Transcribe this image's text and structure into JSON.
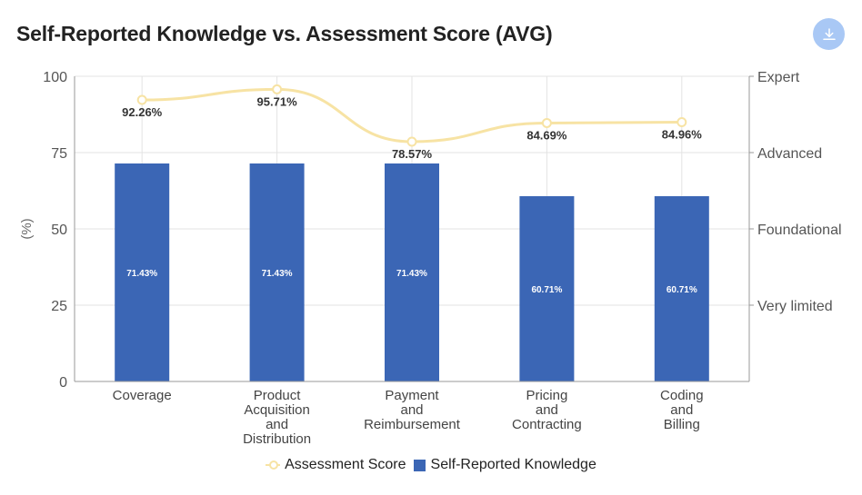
{
  "title": "Self-Reported Knowledge vs. Assessment Score (AVG)",
  "download_icon": "download-icon",
  "colors": {
    "bar": "#3b66b5",
    "line": "#f7e3a4",
    "grid": "#e3e3e3",
    "axis": "#999999"
  },
  "legend": {
    "line_label": "Assessment Score",
    "bar_label": "Self-Reported Knowledge"
  },
  "chart_data": {
    "type": "bar",
    "title": "Self-Reported Knowledge vs. Assessment Score (AVG)",
    "categories": [
      [
        "Coverage"
      ],
      [
        "Product",
        "Acquisition",
        "and",
        "Distribution"
      ],
      [
        "Payment",
        "and",
        "Reimbursement"
      ],
      [
        "Pricing",
        "and",
        "Contracting"
      ],
      [
        "Coding",
        "and",
        "Billing"
      ]
    ],
    "ylabel": "(%)",
    "ylim": [
      0,
      100
    ],
    "yticks": [
      0,
      25,
      50,
      75,
      100
    ],
    "right_axis_labels": [
      {
        "value": 100,
        "label": "Expert"
      },
      {
        "value": 75,
        "label": "Advanced"
      },
      {
        "value": 50,
        "label": "Foundational"
      },
      {
        "value": 25,
        "label": "Very limited"
      }
    ],
    "series": [
      {
        "name": "Self-Reported Knowledge",
        "type": "bar",
        "values": [
          71.43,
          71.43,
          71.43,
          60.71,
          60.71
        ],
        "labels": [
          "71.43%",
          "71.43%",
          "71.43%",
          "60.71%",
          "60.71%"
        ]
      },
      {
        "name": "Assessment Score",
        "type": "line",
        "values": [
          92.26,
          95.71,
          78.57,
          84.69,
          84.96
        ],
        "labels": [
          "92.26%",
          "95.71%",
          "78.57%",
          "84.69%",
          "84.96%"
        ]
      }
    ]
  }
}
